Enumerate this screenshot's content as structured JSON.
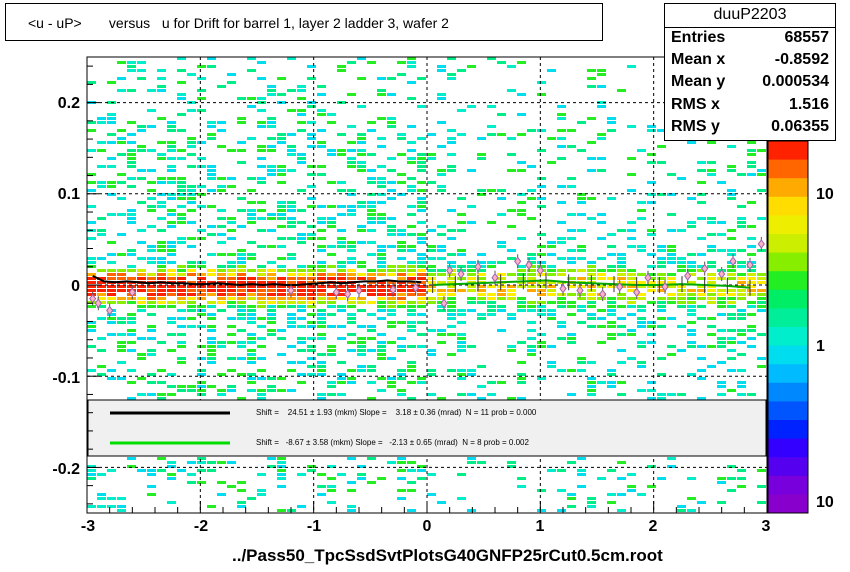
{
  "title": "<u - uP>       versus   u for Drift for barrel 1, layer 2 ladder 3, wafer 2",
  "stats": {
    "name": "duuP2203",
    "rows": [
      {
        "label": "Entries",
        "value": "68557"
      },
      {
        "label": "Mean x",
        "value": "-0.8592"
      },
      {
        "label": "Mean y",
        "value": "0.000534"
      },
      {
        "label": "RMS x",
        "value": "1.516"
      },
      {
        "label": "RMS y",
        "value": "0.06355"
      }
    ]
  },
  "footer": "../Pass50_TpcSsdSvtPlotsG40GNFP25rCut0.5cm.root",
  "fits": [
    {
      "color": "#000000",
      "text": "Shift =    24.51 ± 1.93 (mkm) Slope =    3.18 ± 0.36 (mrad)  N = 11 prob = 0.000"
    },
    {
      "color": "#00dd00",
      "text": "Shift =   -8.67 ± 3.58 (mkm) Slope =   -2.13 ± 0.65 (mrad)  N = 8 prob = 0.002"
    }
  ],
  "chart_data": {
    "type": "heatmap",
    "title": "<u - uP>       versus   u for Drift for barrel 1, layer 2 ladder 3, wafer 2",
    "xlabel": "",
    "ylabel": "",
    "xlim": [
      -3,
      3
    ],
    "ylim": [
      -0.25,
      0.25
    ],
    "x_ticks": [
      "-3",
      "-2",
      "-1",
      "0",
      "1",
      "2",
      "3"
    ],
    "y_ticks": [
      "-0.2",
      "-0.1",
      "0",
      "0.1",
      "0.2"
    ],
    "z_ticks": [
      "1",
      "10",
      "10"
    ],
    "z_scale": "log",
    "grid": true,
    "profile_black": {
      "x": [
        -2.95,
        -2.85,
        -2.75,
        -2.65,
        -2.55,
        -2.45,
        -2.35,
        -2.25,
        -2.15,
        -2.05,
        -1.95,
        -1.85,
        -1.75,
        -1.65,
        -1.55,
        -1.45,
        -1.35,
        -1.25,
        -1.15,
        -1.05,
        -0.95,
        -0.85,
        -0.75,
        -0.65,
        -0.55,
        -0.45,
        -0.35,
        -0.25,
        -0.15,
        -0.05
      ],
      "y": [
        0.01,
        0.004,
        0.003,
        0.004,
        0.003,
        0.002,
        0.003,
        0.002,
        0.002,
        0.001,
        0.001,
        0.002,
        0.001,
        0.0,
        0.001,
        0.0,
        0.001,
        0.0,
        0.0,
        0.001,
        0.002,
        0.003,
        0.002,
        0.003,
        0.004,
        0.004,
        0.005,
        0.004,
        0.004,
        0.003
      ]
    },
    "profile_green": {
      "x": [
        0.05,
        0.25,
        0.45,
        0.65,
        0.85,
        1.05,
        1.25,
        1.45,
        1.65,
        1.85,
        2.05,
        2.25,
        2.45,
        2.65,
        2.85
      ],
      "y": [
        0.0,
        0.001,
        0.002,
        0.003,
        0.004,
        0.005,
        0.003,
        0.002,
        0.001,
        0.0,
        0.0,
        0.001,
        0.0,
        -0.001,
        -0.003
      ]
    },
    "markers": {
      "x": [
        -2.95,
        -2.9,
        -2.8,
        -2.6,
        -1.2,
        -0.8,
        -0.7,
        -0.6,
        -0.3,
        -0.1,
        0.15,
        0.2,
        0.3,
        0.45,
        0.6,
        0.8,
        0.9,
        1.0,
        1.2,
        1.35,
        1.55,
        1.7,
        1.85,
        1.95,
        2.1,
        2.3,
        2.45,
        2.6,
        2.7,
        2.85,
        2.95
      ],
      "y": [
        -0.015,
        -0.02,
        -0.028,
        -0.008,
        -0.006,
        -0.008,
        -0.01,
        -0.006,
        -0.005,
        -0.003,
        -0.02,
        0.016,
        0.012,
        0.02,
        0.008,
        0.026,
        0.022,
        0.016,
        -0.004,
        -0.006,
        -0.01,
        -0.002,
        -0.008,
        0.008,
        -0.002,
        0.01,
        0.018,
        0.012,
        0.026,
        0.022,
        0.045
      ]
    }
  }
}
